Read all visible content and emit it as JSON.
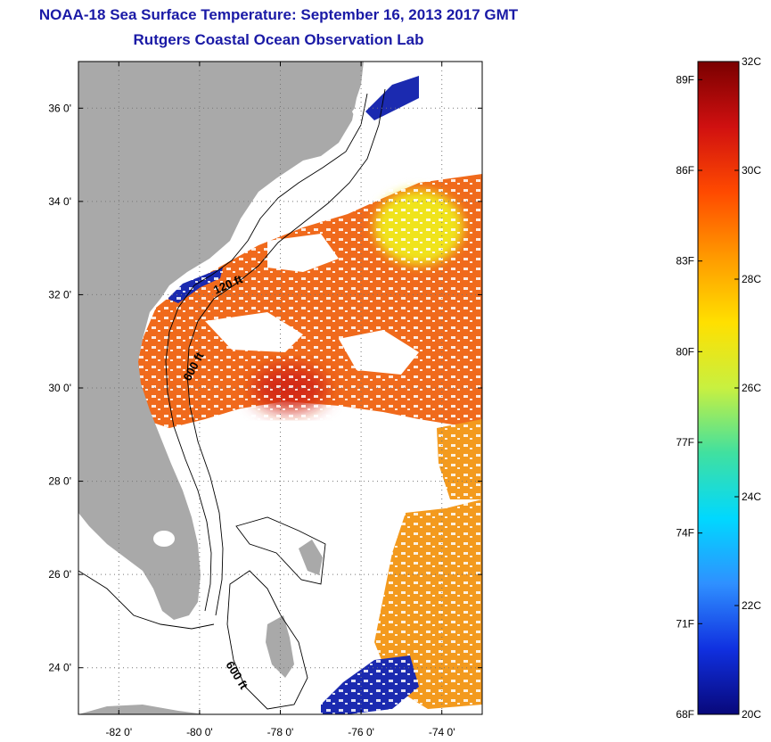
{
  "header": {
    "title": "NOAA-18 Sea Surface Temperature:  September 16, 2013 2017 GMT",
    "subtitle": "Rutgers Coastal Ocean Observation Lab"
  },
  "map": {
    "lon_range": [
      -83,
      -73
    ],
    "lat_range": [
      23,
      37
    ],
    "lon_ticks": [
      {
        "lon": -82,
        "label": "-82 0'"
      },
      {
        "lon": -80,
        "label": "-80 0'"
      },
      {
        "lon": -78,
        "label": "-78 0'"
      },
      {
        "lon": -76,
        "label": "-76 0'"
      },
      {
        "lon": -74,
        "label": "-74 0'"
      }
    ],
    "lat_ticks": [
      {
        "lat": 36,
        "label": "36 0'"
      },
      {
        "lat": 34,
        "label": "34 0'"
      },
      {
        "lat": 32,
        "label": "32 0'"
      },
      {
        "lat": 30,
        "label": "30 0'"
      },
      {
        "lat": 28,
        "label": "28 0'"
      },
      {
        "lat": 26,
        "label": "26 0'"
      },
      {
        "lat": 24,
        "label": "24 0'"
      }
    ],
    "isobath_labels": [
      "120 ft",
      "600 ft",
      "600 ft"
    ],
    "colors": {
      "land": "#a9a9a9",
      "no_data": "#ffffff",
      "warm_core": "#d42a12",
      "gulf_stream": "#f06a1c",
      "offshore_warm": "#f39a1e",
      "yellow_patch": "#f0e41c",
      "cold_coastal": "#1b2ab0"
    }
  },
  "colorbar": {
    "range_c": [
      20,
      32
    ],
    "celsius_ticks": [
      {
        "value": 32,
        "label": "32C"
      },
      {
        "value": 30,
        "label": "30C"
      },
      {
        "value": 28,
        "label": "28C"
      },
      {
        "value": 26,
        "label": "26C"
      },
      {
        "value": 24,
        "label": "24C"
      },
      {
        "value": 22,
        "label": "22C"
      },
      {
        "value": 20,
        "label": "20C"
      }
    ],
    "fahrenheit_ticks": [
      {
        "value": 89,
        "label": "89F"
      },
      {
        "value": 86,
        "label": "86F"
      },
      {
        "value": 83,
        "label": "83F"
      },
      {
        "value": 80,
        "label": "80F"
      },
      {
        "value": 77,
        "label": "77F"
      },
      {
        "value": 74,
        "label": "74F"
      },
      {
        "value": 71,
        "label": "71F"
      },
      {
        "value": 68,
        "label": "68F"
      }
    ],
    "stops": [
      "#7a0000",
      "#d01010",
      "#ff4a00",
      "#ff9a00",
      "#ffe000",
      "#c8f040",
      "#40e0a0",
      "#00d8ff",
      "#2f90ff",
      "#1030e0",
      "#08087a"
    ]
  }
}
